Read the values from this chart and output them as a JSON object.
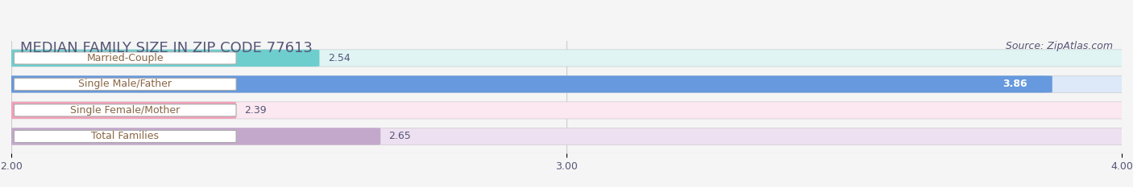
{
  "title": "MEDIAN FAMILY SIZE IN ZIP CODE 77613",
  "source": "Source: ZipAtlas.com",
  "categories": [
    "Married-Couple",
    "Single Male/Father",
    "Single Female/Mother",
    "Total Families"
  ],
  "values": [
    2.54,
    3.86,
    2.39,
    2.65
  ],
  "bar_colors": [
    "#6ecece",
    "#6699dd",
    "#f4a0b8",
    "#c4a8cc"
  ],
  "bar_bg_colors": [
    "#e0f4f4",
    "#dde8f8",
    "#fce8f0",
    "#ede0f0"
  ],
  "xlim": [
    2.0,
    4.0
  ],
  "xticks": [
    2.0,
    3.0,
    4.0
  ],
  "xtick_labels": [
    "2.00",
    "3.00",
    "4.00"
  ],
  "title_fontsize": 13,
  "source_fontsize": 9,
  "label_fontsize": 9,
  "value_fontsize": 9,
  "tick_fontsize": 9,
  "bar_height": 0.62,
  "background_color": "#f5f5f5",
  "grid_color": "#cccccc",
  "text_color": "#555577",
  "label_text_color": "#886644"
}
